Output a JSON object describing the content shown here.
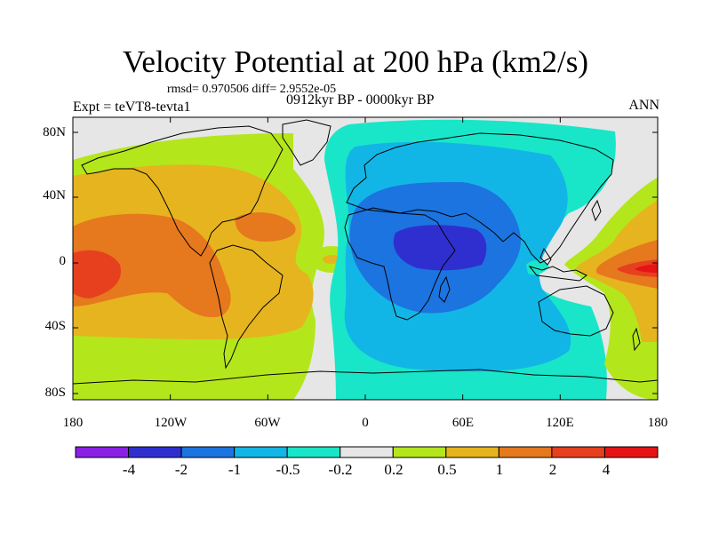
{
  "title": "Velocity Potential at 200 hPa (km2/s)",
  "stats": "rmsd= 0.970506 diff= 2.9552e-05",
  "experiment": "Expt = teVT8-tevta1",
  "period": "0912kyr BP - 0000kyr BP",
  "season": "ANN",
  "map": {
    "lon_ticks": [
      "180",
      "120W",
      "60W",
      "0",
      "60E",
      "120E",
      "180"
    ],
    "lat_ticks": [
      "80N",
      "40N",
      "0",
      "40S",
      "80S"
    ],
    "background_color": "#e6e6e6",
    "coastline_color": "#000000"
  },
  "colorbar": {
    "colors": [
      "#8a1fe6",
      "#2f2fd0",
      "#1c74e0",
      "#12b6e6",
      "#19e6c8",
      "#e6e6e6",
      "#b4e61c",
      "#e6b41e",
      "#e6781e",
      "#e6401e",
      "#e61414"
    ],
    "labels": [
      "-4",
      "-2",
      "-1",
      "-0.5",
      "-0.2",
      "0.2",
      "0.5",
      "1",
      "2",
      "4"
    ]
  }
}
